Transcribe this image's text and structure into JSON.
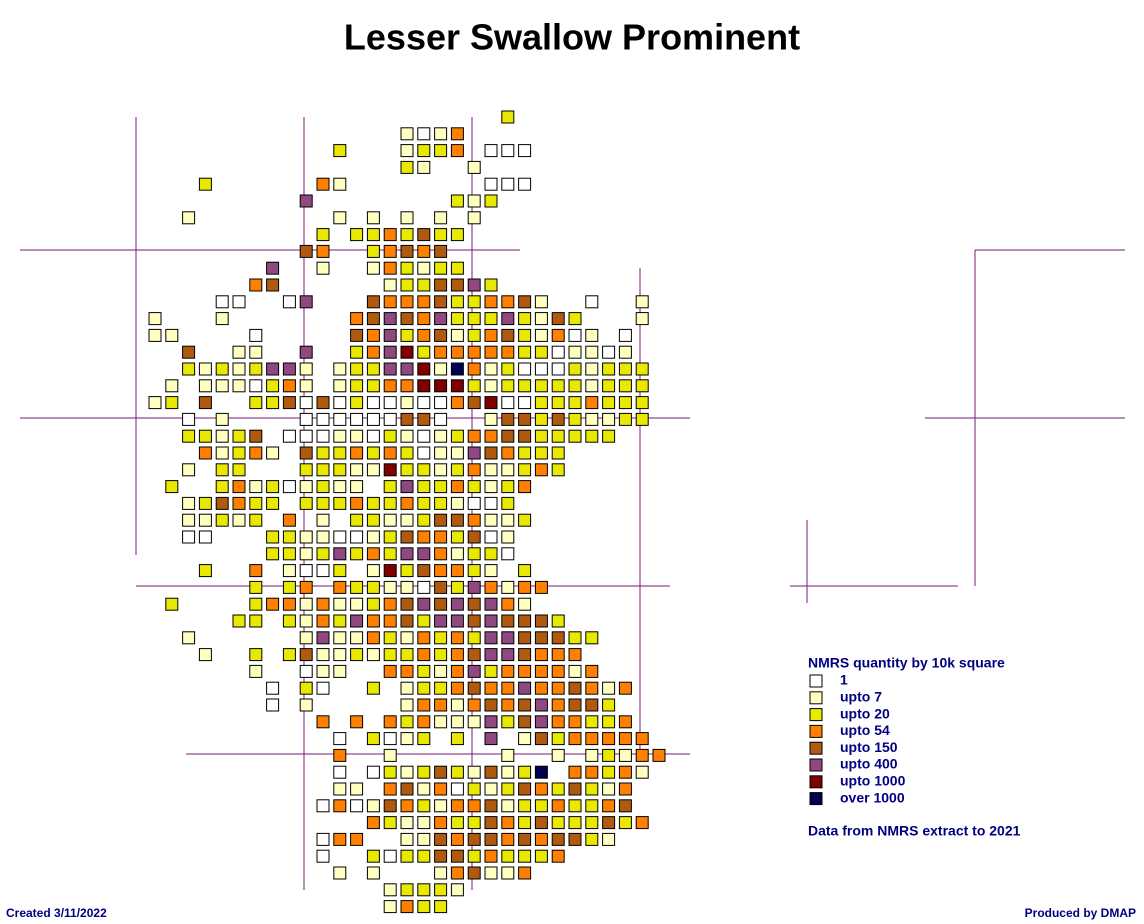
{
  "title": "Lesser Swallow Prominent",
  "legend": {
    "title": "NMRS quantity by 10k square",
    "items": [
      {
        "label": "1",
        "color": "#ffffff"
      },
      {
        "label": "upto 7",
        "color": "#ffffc0"
      },
      {
        "label": "upto 20",
        "color": "#e8e800"
      },
      {
        "label": "upto 54",
        "color": "#ff8000"
      },
      {
        "label": "upto 150",
        "color": "#b05a10"
      },
      {
        "label": "upto 400",
        "color": "#904880"
      },
      {
        "label": "upto 1000",
        "color": "#800000"
      },
      {
        "label": "over 1000",
        "color": "#000050"
      }
    ]
  },
  "note": "Data from NMRS extract to 2021",
  "created": "Created 3/11/2022",
  "credit": "Produced by DMAP",
  "grid": {
    "rows": [
      ".....................2",
      "...............1013",
      "...........2...1223.000",
      "...............21..1",
      "...2......31........000",
      ".........5........212",
      "..1........1.1.1.1.1",
      "..........2.2232422",
      ".........43..23434",
      ".......5..1..132122",
      "......34......1224452",
      "....00..05...43334223341..0..1",
      "1...1.......34543522252142...1",
      "11....0.....435234123421301.0",
      "..4..11..5..23562333332201101",
      "..21212551.1225561731200021222",
      ".1.1110231.1223366621222221222",
      "12.4..224040200100346002223222",
      "..0.1....000000440..1442421122",
      "..22124.00011021012334422222",
      "...31231.4223232011543222",
      "..1.22...2221162212311232",
      ".2..231201211.252232123",
      "..124322.2223223221002",
      "..11212.3.1.22112443112",
      "..00...221100124332401",
      ".......221252325531220",
      "...2..3.1002.16243321.2",
      "......2.23.3221104253133",
      ".2....23313112345454531",
      ".....22.21325334255454442",
      "..1......151132132325544422",
      "...1..2.241121223234554333",
      "......1..011..3321352333313",
      ".......0.20..2.12234335334313",
      ".......0.1.....1331343453442",
      "..........3.3.323111524533223",
      "...........0.2012.2.5.14233333",
      "...........3..1......1..1.12133",
      "...........0.02124214127.33231",
      "...........11.341302124324213",
      "..........0301432133412232234",
      ".............32113224324222423",
      "..........033..1143443434421",
      "..........0..202244232223",
      "...........1.1...134113",
      "..............12221",
      "..............1322"
    ]
  }
}
